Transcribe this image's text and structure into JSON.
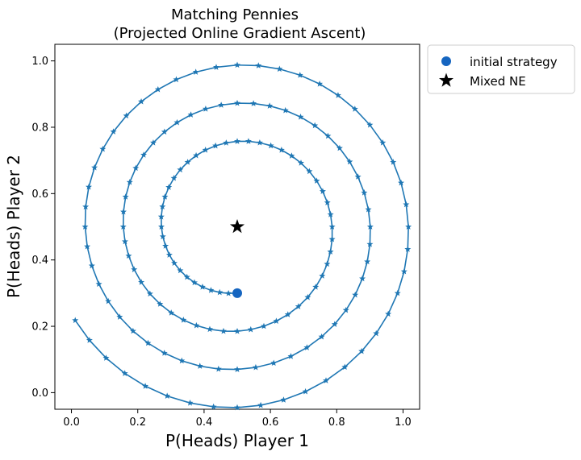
{
  "chart_data": {
    "type": "scatter",
    "title": "Matching Pennies",
    "subtitle": "(Projected Online Gradient Ascent)",
    "xlabel": "P(Heads) Player 1",
    "ylabel": "P(Heads) Player 2",
    "xlim": [
      -0.05,
      1.05
    ],
    "ylim": [
      -0.05,
      1.05
    ],
    "xticks": [
      "0.0",
      "0.2",
      "0.4",
      "0.6",
      "0.8",
      "1.0"
    ],
    "yticks": [
      "0.0",
      "0.2",
      "0.4",
      "0.6",
      "0.8",
      "1.0"
    ],
    "grid": false,
    "legend": {
      "placement": "outside-top-right",
      "entries": [
        {
          "label": "initial strategy",
          "marker": "circle",
          "color": "#1565c0"
        },
        {
          "label": "Mixed NE",
          "marker": "star",
          "color": "#000000"
        }
      ]
    },
    "series": [
      {
        "marker": "star",
        "color": "#1f77b4",
        "points_per_turn": 48,
        "start": [
          0.5,
          0.3
        ],
        "end": [
          0.035,
          0.255
        ],
        "center": [
          0.5,
          0.5
        ],
        "radius_start": 0.2,
        "radius_per_turn": 0.115
      }
    ],
    "initial_strategy": {
      "x": 0.5,
      "y": 0.3,
      "color": "#1565c0"
    },
    "mixed_ne": {
      "x": 0.5,
      "y": 0.5,
      "color": "#000000"
    }
  }
}
